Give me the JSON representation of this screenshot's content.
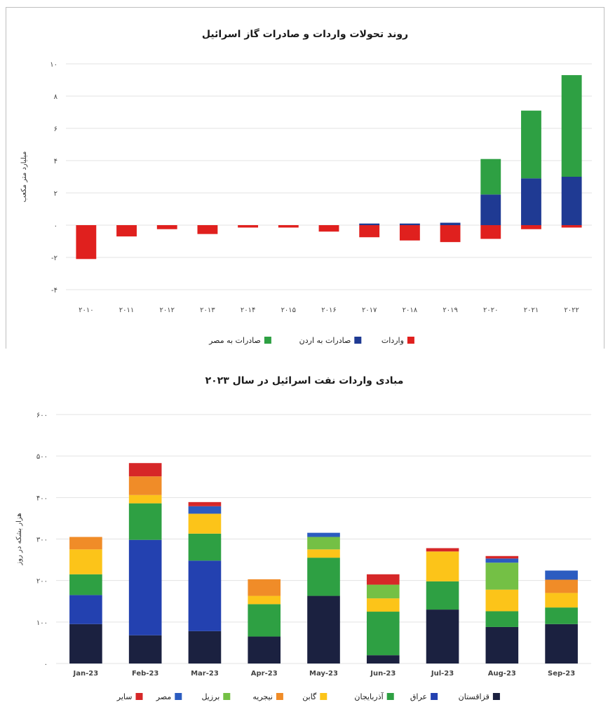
{
  "chart_data": [
    {
      "type": "bar",
      "stacked": true,
      "title": "روند تحولات واردات و صادرات گاز اسرائیل",
      "ylabel": "میلیارد متر مکعب",
      "categories": [
        "۲۰۱۰",
        "۲۰۱۱",
        "۲۰۱۲",
        "۲۰۱۳",
        "۲۰۱۴",
        "۲۰۱۵",
        "۲۰۱۶",
        "۲۰۱۷",
        "۲۰۱۸",
        "۲۰۱۹",
        "۲۰۲۰",
        "۲۰۲۱",
        "۲۰۲۲"
      ],
      "yticks": [
        -4,
        -2,
        0,
        2,
        4,
        6,
        8,
        10
      ],
      "ytick_labels": [
        "-۴",
        "-۲",
        "۰",
        "۲",
        "۴",
        "۶",
        "۸",
        "۱۰"
      ],
      "ylim": [
        -4,
        10
      ],
      "grid": true,
      "legend_position": "bottom",
      "series": [
        {
          "name": "واردات",
          "color": "#e0201e",
          "values": [
            -2.1,
            -0.7,
            -0.25,
            -0.55,
            -0.15,
            -0.15,
            -0.4,
            -0.75,
            -0.95,
            -1.05,
            -0.85,
            -0.25,
            -0.15
          ]
        },
        {
          "name": "صادرات به اردن",
          "color": "#1f3a93",
          "values": [
            0,
            0,
            0,
            0,
            0,
            0,
            0,
            0.1,
            0.1,
            0.15,
            1.9,
            2.9,
            3.0
          ]
        },
        {
          "name": "صادرات به مصر",
          "color": "#2ea043",
          "values": [
            0,
            0,
            0,
            0,
            0,
            0,
            0,
            0,
            0,
            0,
            2.2,
            4.2,
            6.3
          ]
        }
      ]
    },
    {
      "type": "bar",
      "stacked": true,
      "title": "مبادی واردات نفت اسرائیل در سال ۲۰۲۳",
      "ylabel": "هزار بشکه در روز",
      "categories": [
        "Jan-23",
        "Feb-23",
        "Mar-23",
        "Apr-23",
        "May-23",
        "Jun-23",
        "Jul-23",
        "Aug-23",
        "Sep-23"
      ],
      "yticks": [
        0,
        100,
        200,
        300,
        400,
        500,
        600
      ],
      "ytick_labels": [
        "۰",
        "۱۰۰",
        "۲۰۰",
        "۳۰۰",
        "۴۰۰",
        "۵۰۰",
        "۶۰۰"
      ],
      "ylim": [
        0,
        600
      ],
      "grid": true,
      "legend_position": "bottom",
      "series": [
        {
          "name": "قزاقستان",
          "color": "#1b2140",
          "values": [
            95,
            68,
            78,
            65,
            163,
            20,
            130,
            88,
            95
          ]
        },
        {
          "name": "عراق",
          "color": "#2341b0",
          "values": [
            70,
            230,
            170,
            0,
            0,
            0,
            0,
            0,
            0
          ]
        },
        {
          "name": "آذربایجان",
          "color": "#2ea043",
          "values": [
            50,
            88,
            65,
            78,
            92,
            105,
            68,
            38,
            40
          ]
        },
        {
          "name": "گابن",
          "color": "#fcc419",
          "values": [
            60,
            20,
            48,
            20,
            20,
            32,
            72,
            52,
            35
          ]
        },
        {
          "name": "نیجریه",
          "color": "#f08c28",
          "values": [
            30,
            45,
            0,
            40,
            0,
            0,
            0,
            0,
            32
          ]
        },
        {
          "name": "برزیل",
          "color": "#74c045",
          "values": [
            0,
            0,
            0,
            0,
            30,
            33,
            0,
            65,
            0
          ]
        },
        {
          "name": "مصر",
          "color": "#2c5cc0",
          "values": [
            0,
            0,
            18,
            0,
            10,
            0,
            0,
            10,
            22
          ]
        },
        {
          "name": "سایر",
          "color": "#d62728",
          "values": [
            0,
            32,
            10,
            0,
            0,
            25,
            8,
            6,
            0
          ]
        }
      ]
    }
  ]
}
